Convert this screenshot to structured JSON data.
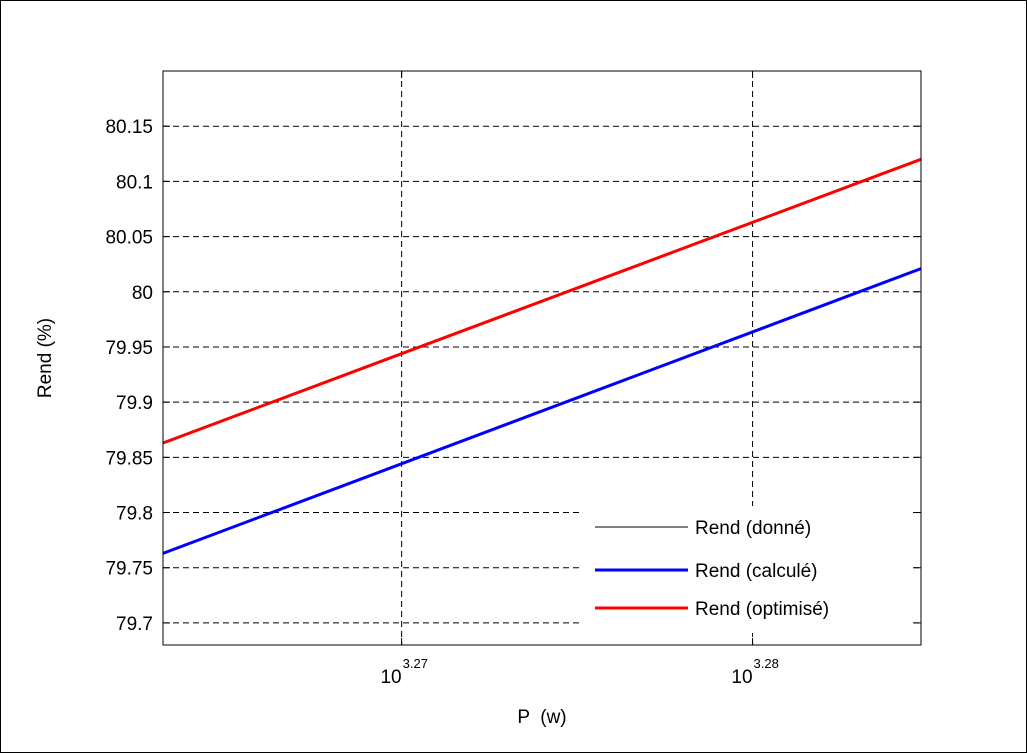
{
  "chart_data": {
    "type": "line",
    "xlabel": "P  (w)",
    "ylabel": "Rend (%)",
    "x_scale": "log10",
    "xlim_log10": [
      3.2632,
      3.2848
    ],
    "ylim": [
      79.68,
      80.2
    ],
    "x_ticks": [
      {
        "base": "10",
        "exponent": "3.27",
        "log10": 3.27
      },
      {
        "base": "10",
        "exponent": "3.28",
        "log10": 3.28
      }
    ],
    "y_ticks": [
      79.7,
      79.75,
      79.8,
      79.85,
      79.9,
      79.95,
      80,
      80.05,
      80.1,
      80.15
    ],
    "y_tick_labels": [
      "79.7",
      "79.75",
      "79.8",
      "79.85",
      "79.9",
      "79.95",
      "80",
      "80.05",
      "80.1",
      "80.15"
    ],
    "grid": true,
    "legend_position": "bottom-right",
    "series": [
      {
        "name": "Rend (donné)",
        "color": "#000000",
        "style": "thin",
        "log10_x": [],
        "y": []
      },
      {
        "name": "Rend (calculé)",
        "color": "#0000ff",
        "style": "thick",
        "log10_x": [
          3.2632,
          3.2848
        ],
        "y": [
          79.763,
          80.021
        ]
      },
      {
        "name": "Rend (optimisé)",
        "color": "#ff0000",
        "style": "thick",
        "log10_x": [
          3.2632,
          3.2848
        ],
        "y": [
          79.863,
          80.12
        ]
      }
    ]
  }
}
